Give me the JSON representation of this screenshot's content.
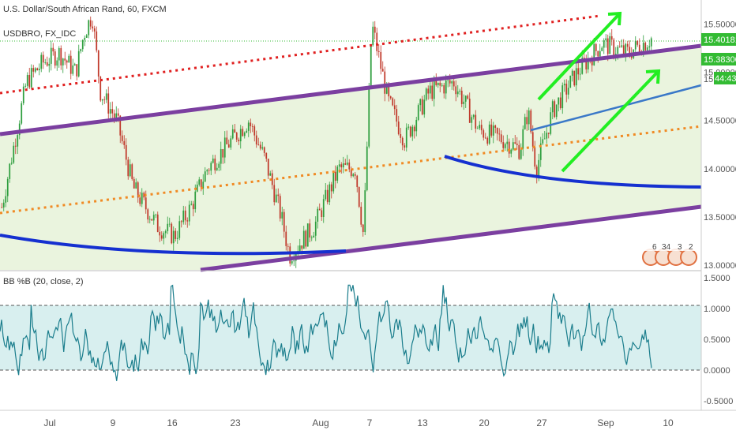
{
  "header": {
    "title": "U.S. Dollar/South African Rand, 60, FXCM",
    "symbol_line": "USDBRO, FX_IDC"
  },
  "indicator": {
    "name": "BB %B (20, close, 2)"
  },
  "price_tags": {
    "current": "15.40181",
    "second": "15.38300",
    "countdown": "44:43",
    "countdown_prefix": "15."
  },
  "colors": {
    "channel": "#7b3fa0",
    "channel_fill": "#e6f2d8",
    "resistance_dotted": "#e02020",
    "midline_dotted": "#f08a24",
    "curve": "#1530d0",
    "trend_blue": "#3a78c8",
    "arrows": "#22ee22",
    "candle_up": "#2e9e3e",
    "candle_down": "#c0392b",
    "oscillator": "#1a7d8c",
    "osc_band": "#d8efef",
    "price_tag": "#33bb33"
  },
  "chart_data": [
    {
      "type": "candlestick",
      "title": "U.S. Dollar/South African Rand, 60, FXCM",
      "x_ticks": [
        "Jul",
        "9",
        "16",
        "23",
        "Aug",
        "7",
        "13",
        "20",
        "27",
        "Sep",
        "10"
      ],
      "y_ticks": [
        "15.50000",
        "15.00000",
        "14.50000",
        "14.00000",
        "13.50000",
        "13.00000"
      ],
      "ylim": [
        12.95,
        15.75
      ],
      "path_points": [
        [
          0,
          13.6
        ],
        [
          3,
          14.9
        ],
        [
          5,
          15.1
        ],
        [
          7,
          15.2
        ],
        [
          9,
          15.0
        ],
        [
          10,
          15.4
        ],
        [
          11,
          15.6
        ],
        [
          12,
          14.8
        ],
        [
          14,
          14.5
        ],
        [
          16,
          13.8
        ],
        [
          19,
          13.4
        ],
        [
          21,
          13.3
        ],
        [
          23,
          13.6
        ],
        [
          25,
          14.0
        ],
        [
          28,
          14.3
        ],
        [
          30,
          14.5
        ],
        [
          32,
          14.1
        ],
        [
          34,
          13.5
        ],
        [
          35,
          13.1
        ],
        [
          38,
          13.4
        ],
        [
          41,
          14.0
        ],
        [
          43,
          14.0
        ],
        [
          44,
          13.3
        ],
        [
          45,
          15.5
        ],
        [
          47,
          14.7
        ],
        [
          49,
          14.3
        ],
        [
          52,
          14.8
        ],
        [
          55,
          14.9
        ],
        [
          58,
          14.4
        ],
        [
          61,
          14.3
        ],
        [
          63,
          14.2
        ],
        [
          64,
          14.6
        ],
        [
          65,
          14.0
        ],
        [
          67,
          14.6
        ],
        [
          70,
          15.0
        ],
        [
          73,
          15.3
        ],
        [
          76,
          15.2
        ],
        [
          79,
          15.35
        ]
      ],
      "grid": false
    },
    {
      "type": "line",
      "title": "BB %B (20, close, 2)",
      "y_ticks": [
        "1.5000",
        "1.0000",
        "0.5000",
        "0.0000",
        "-0.5000"
      ],
      "ylim": [
        -0.55,
        1.55
      ],
      "band": [
        0,
        1
      ],
      "grid": false
    }
  ]
}
